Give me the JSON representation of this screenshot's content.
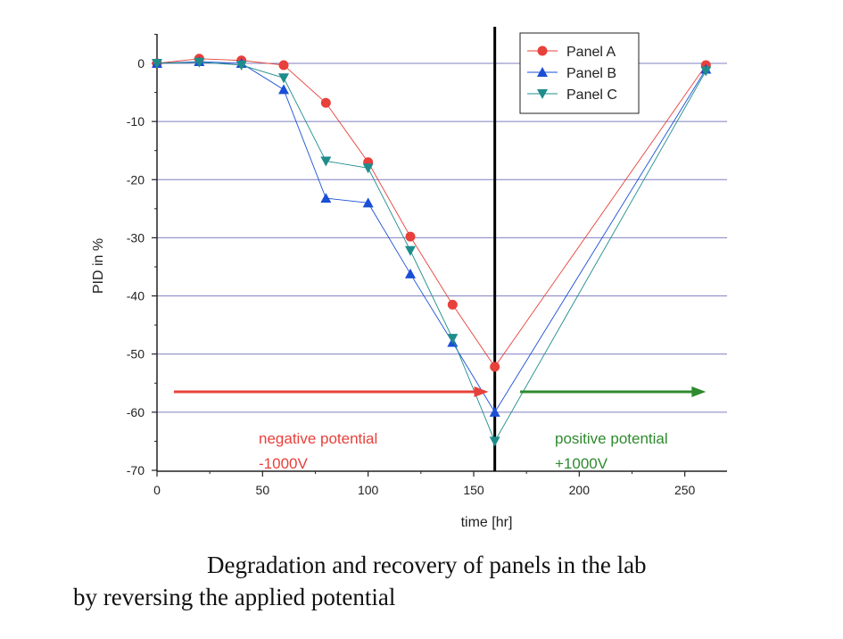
{
  "chart_data": {
    "type": "line",
    "xlabel": "time [hr]",
    "ylabel": "PID in %",
    "xlim": [
      0,
      270
    ],
    "ylim": [
      -70,
      5
    ],
    "x_ticks": [
      0,
      50,
      100,
      150,
      200,
      250
    ],
    "y_ticks": [
      0,
      -10,
      -20,
      -30,
      -40,
      -50,
      -60,
      -70
    ],
    "grid": "horizontal",
    "legend_position": "top-right",
    "series": [
      {
        "name": "Panel A",
        "marker": "circle",
        "color": "#e8403a",
        "x": [
          0,
          20,
          40,
          60,
          80,
          100,
          120,
          140,
          160,
          260
        ],
        "y": [
          0,
          0.8,
          0.5,
          -0.3,
          -6.8,
          -17.0,
          -29.8,
          -41.5,
          -52.2,
          -0.3
        ]
      },
      {
        "name": "Panel B",
        "marker": "triangle-up",
        "color": "#1a4fd6",
        "x": [
          0,
          20,
          40,
          60,
          80,
          100,
          120,
          140,
          160,
          260
        ],
        "y": [
          0,
          0.3,
          0,
          -4.5,
          -23.2,
          -24.0,
          -36.2,
          -48.0,
          -60.0,
          -1.0
        ]
      },
      {
        "name": "Panel C",
        "marker": "triangle-down",
        "color": "#1f8c8c",
        "x": [
          0,
          20,
          40,
          60,
          80,
          100,
          120,
          140,
          160,
          260
        ],
        "y": [
          0,
          0.2,
          -0.3,
          -2.5,
          -16.8,
          -18.0,
          -32.2,
          -47.3,
          -65.0,
          -1.3
        ]
      }
    ],
    "vertical_line_x": 160,
    "annotations": [
      {
        "id": "neg",
        "line1": "negative potential",
        "line2": "-1000V",
        "color": "#e8403a",
        "arrow_from_x": 8,
        "arrow_to_x": 157,
        "arrow_y": -56.5
      },
      {
        "id": "pos",
        "line1": "positive potential",
        "line2": "+1000V",
        "color": "#2e8a2e",
        "arrow_from_x": 172,
        "arrow_to_x": 260,
        "arrow_y": -56.5
      }
    ]
  },
  "caption": {
    "line1": "Degradation and recovery of  panels in the lab",
    "line2": "by reversing the applied potential"
  }
}
